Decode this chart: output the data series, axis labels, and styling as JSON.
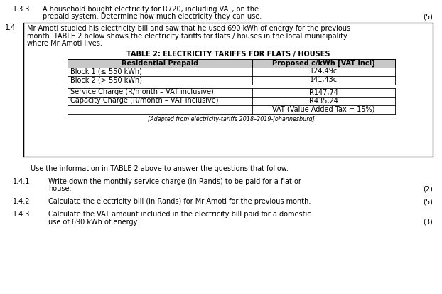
{
  "bg_color": "#ffffff",
  "s133_num": "1.3.3",
  "s133_line1": "A household bought electricity for R720, including VAT, on the",
  "s133_line2": "prepaid system. Determine how much electricity they can use.",
  "s133_marks": "(5)",
  "s14_num": "1.4",
  "intro_line1": "Mr Amoti studied his electricity bill and saw that he used 690 kWh of energy for the previous",
  "intro_line2": "month. TABLE 2 below shows the electricity tariffs for flats / houses in the local municipality",
  "intro_line3": "where Mr Amoti lives.",
  "table_title": "TABLE 2: ELECTRICITY TARIFFS FOR FLATS / HOUSES",
  "hdr_col1": "Residential Prepaid",
  "hdr_col2": "Proposed c/kWh [VAT incl]",
  "row1_col1": "Block 1 (≤ 550 kWh)",
  "row1_col2": "124,49c",
  "row2_col1": "Block 2 (> 550 kWh)",
  "row2_col2": "141,43c",
  "svc_col1": "Service Charge (R/month – VAT inclusive)",
  "svc_col2": "R147,74",
  "cap_col1": "Capacity Charge (R/month – VAT inclusive)",
  "cap_col2": "R435,24",
  "vat_text": "VAT (Value Added Tax = 15%)",
  "footnote": "[Adapted from electricity-tariffs 2018–2019-Johannesburg]",
  "use_info": "Use the information in TABLE 2 above to answer the questions that follow.",
  "q141_num": "1.4.1",
  "q141_l1": "Write down the monthly service charge (in Rands) to be paid for a flat or",
  "q141_l2": "house.",
  "q141_marks": "(2)",
  "q142_num": "1.4.2",
  "q142_text": "Calculate the electricity bill (in Rands) for Mr Amoti for the previous month.",
  "q142_marks": "(5)",
  "q143_num": "1.4.3",
  "q143_l1": "Calculate the VAT amount included in the electricity bill paid for a domestic",
  "q143_l2": "use of 690 kWh of energy.",
  "q143_marks": "(3)",
  "fs": 7.0,
  "fs_small": 5.8,
  "lh": 10.5
}
